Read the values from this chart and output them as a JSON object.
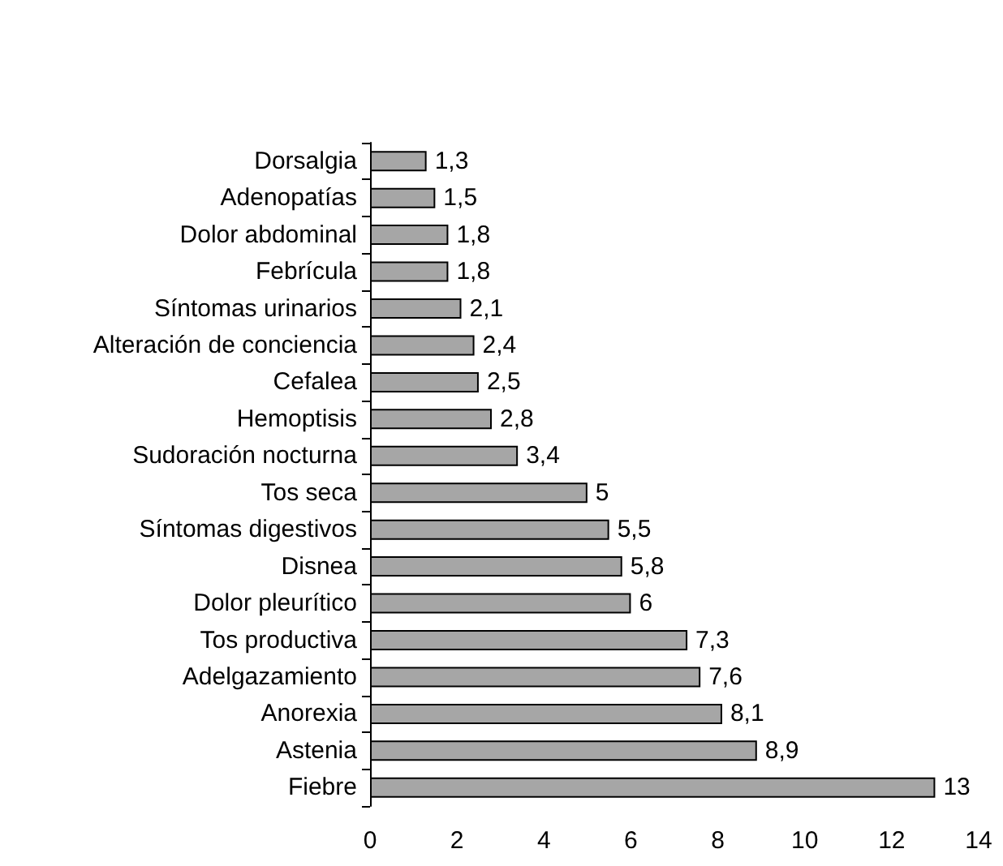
{
  "chart_data": {
    "type": "bar",
    "orientation": "horizontal",
    "categories": [
      "Dorsalgia",
      "Adenopatías",
      "Dolor abdominal",
      "Febrícula",
      "Síntomas urinarios",
      "Alteración de conciencia",
      "Cefalea",
      "Hemoptisis",
      "Sudoración nocturna",
      "Tos seca",
      "Síntomas digestivos",
      "Disnea",
      "Dolor pleurítico",
      "Tos productiva",
      "Adelgazamiento",
      "Anorexia",
      "Astenia",
      "Fiebre"
    ],
    "values": [
      1.3,
      1.5,
      1.8,
      1.8,
      2.1,
      2.4,
      2.5,
      2.8,
      3.4,
      5,
      5.5,
      5.8,
      6,
      7.3,
      7.6,
      8.1,
      8.9,
      13
    ],
    "value_labels": [
      "1,3",
      "1,5",
      "1,8",
      "1,8",
      "2,1",
      "2,4",
      "2,5",
      "2,8",
      "3,4",
      "5",
      "5,5",
      "5,8",
      "6",
      "7,3",
      "7,6",
      "8,1",
      "8,9",
      "13"
    ],
    "color": "#a6a6a6",
    "xlim": [
      0,
      14
    ],
    "xticks": [
      0,
      2,
      4,
      6,
      8,
      10,
      12,
      14
    ],
    "grid": false
  }
}
